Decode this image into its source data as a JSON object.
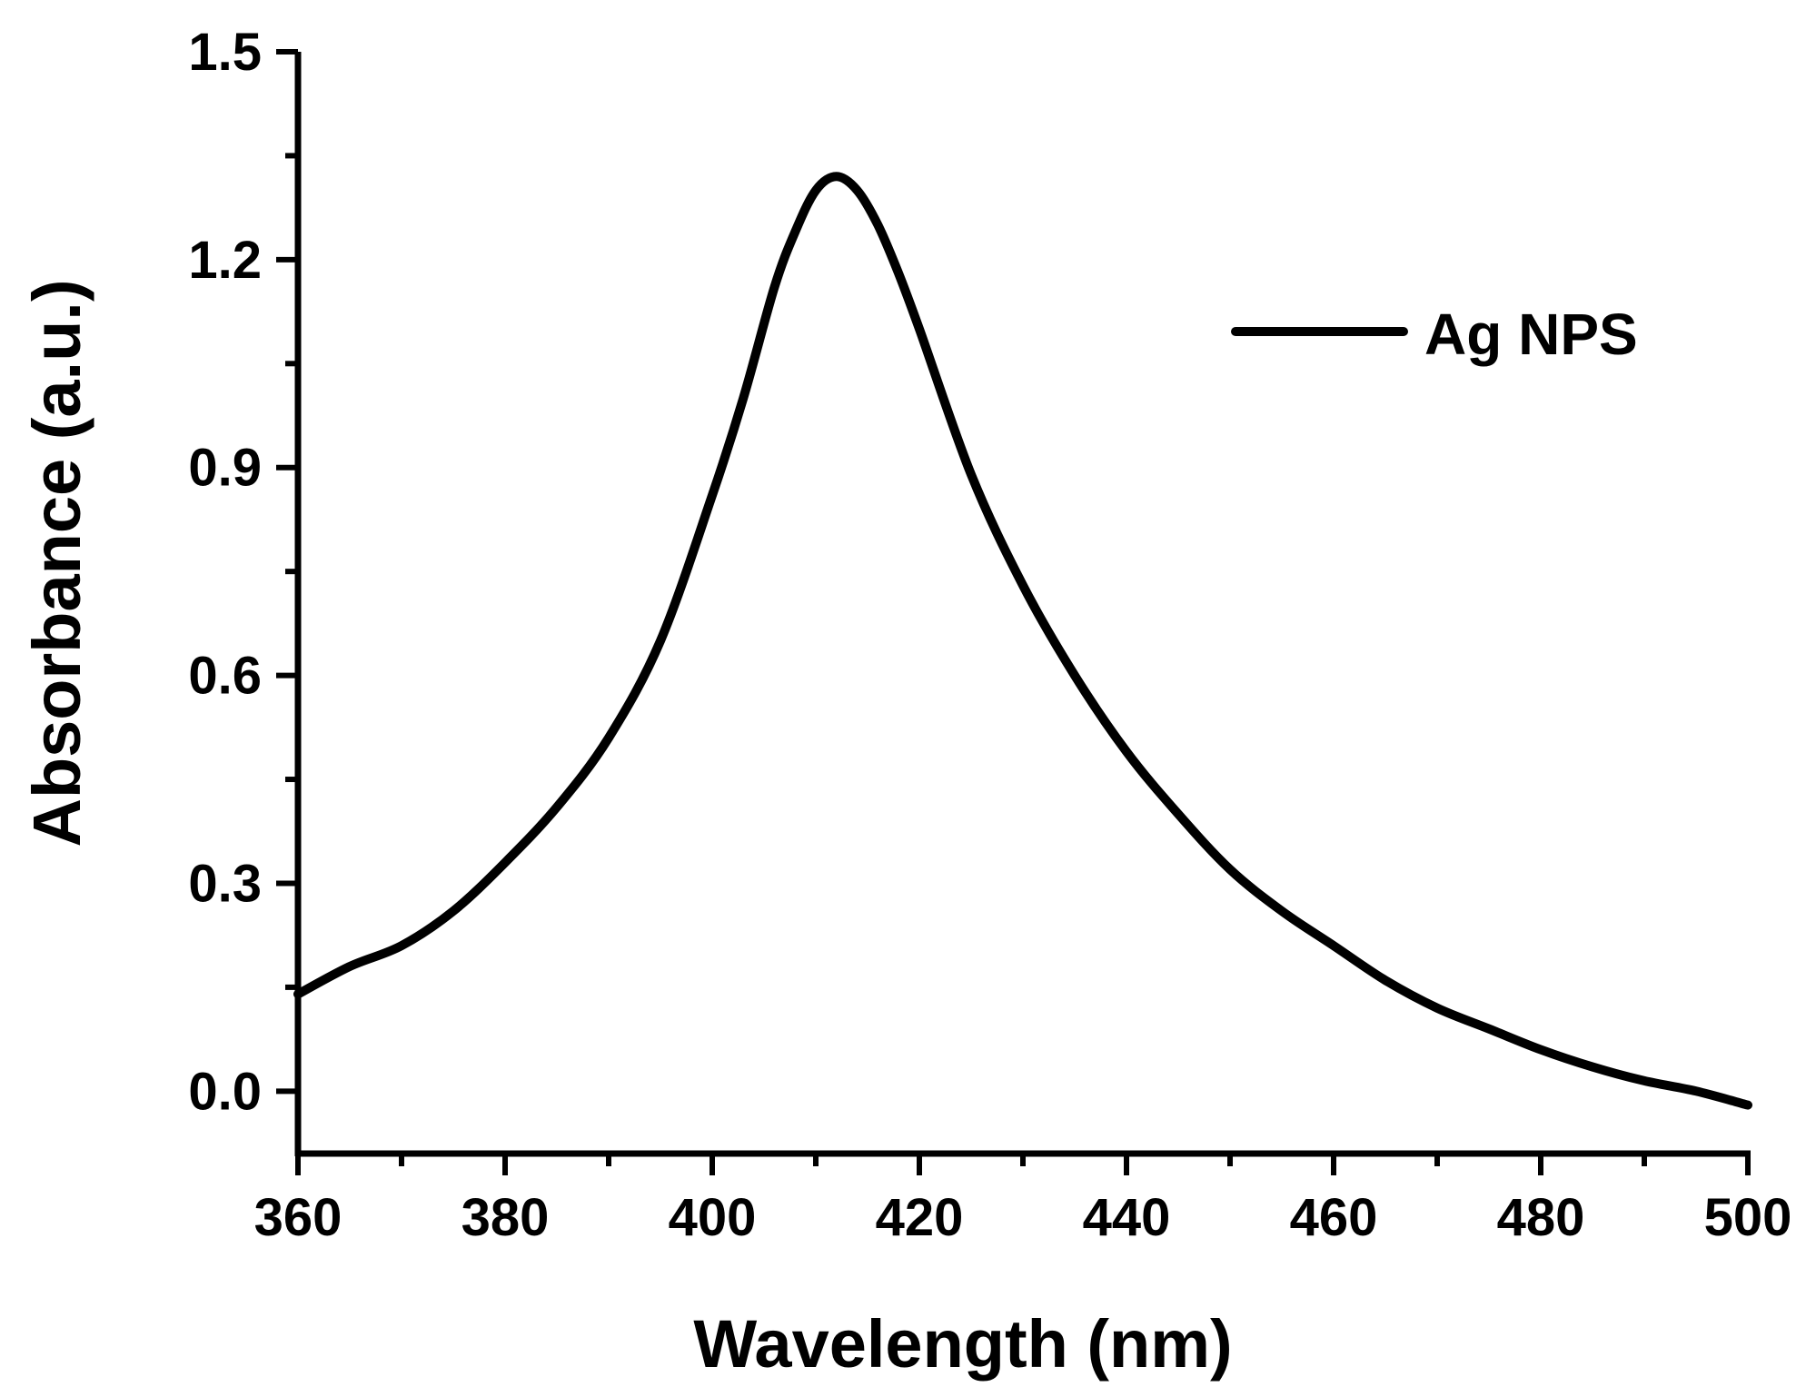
{
  "chart_data": {
    "type": "line",
    "title": "",
    "xlabel": "Wavelength (nm)",
    "ylabel": "Absorbance (a.u.)",
    "xlim": [
      360,
      500
    ],
    "ylim": [
      -0.09,
      1.5
    ],
    "xticks": [
      360,
      380,
      400,
      420,
      440,
      460,
      480,
      500
    ],
    "xtick_labels": [
      "360",
      "380",
      "400",
      "420",
      "440",
      "460",
      "480",
      "500"
    ],
    "yticks": [
      0.0,
      0.3,
      0.6,
      0.9,
      1.2,
      1.5
    ],
    "ytick_labels": [
      "0.0",
      "0.3",
      "0.6",
      "0.9",
      "1.2",
      "1.5"
    ],
    "grid": false,
    "legend_position": "top-right",
    "series": [
      {
        "name": "Ag NPS",
        "color": "#000000",
        "x": [
          360,
          365,
          370,
          375,
          380,
          385,
          390,
          395,
          400,
          403,
          406,
          408,
          410,
          412,
          414,
          416,
          418,
          420,
          425,
          430,
          435,
          440,
          445,
          450,
          455,
          460,
          465,
          470,
          475,
          480,
          485,
          490,
          495,
          500
        ],
        "y": [
          0.14,
          0.18,
          0.21,
          0.26,
          0.33,
          0.41,
          0.51,
          0.65,
          0.86,
          1.0,
          1.16,
          1.24,
          1.3,
          1.32,
          1.3,
          1.25,
          1.18,
          1.1,
          0.89,
          0.73,
          0.6,
          0.49,
          0.4,
          0.32,
          0.26,
          0.21,
          0.16,
          0.12,
          0.09,
          0.06,
          0.035,
          0.015,
          0.0,
          -0.02
        ]
      }
    ]
  }
}
